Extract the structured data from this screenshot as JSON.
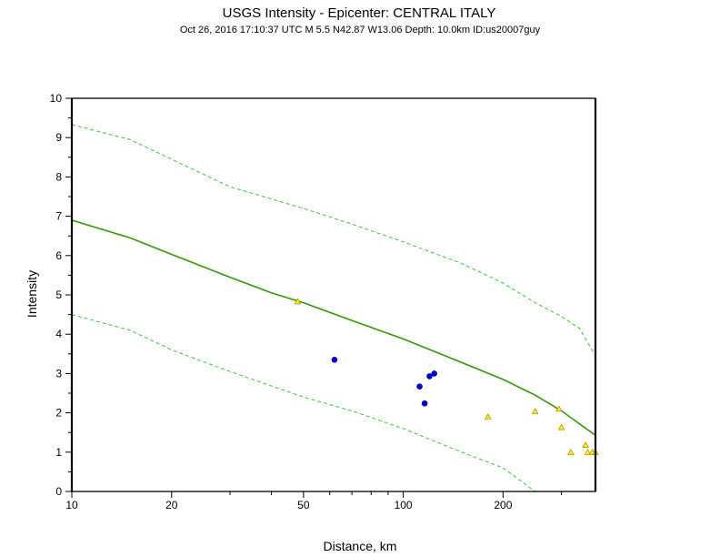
{
  "chart_data": {
    "type": "scatter",
    "title": "USGS Intensity -   Epicenter: CENTRAL ITALY",
    "subtitle": "Oct 26, 2016 17:10:37 UTC   M 5.5   N42.87 W13.06   Depth: 10.0km   ID:us20007guy",
    "xlabel": "Distance, km",
    "ylabel": "Intensity",
    "x_scale": "log",
    "xlim": [
      10,
      380
    ],
    "ylim": [
      0,
      10
    ],
    "x_ticks": [
      10,
      20,
      50,
      100,
      200
    ],
    "x_tick_labels": [
      "10",
      "20",
      "50",
      "100",
      "200"
    ],
    "y_ticks": [
      0,
      1,
      2,
      3,
      4,
      5,
      6,
      7,
      8,
      9,
      10
    ],
    "y_tick_labels": [
      "0",
      "1",
      "2",
      "3",
      "4",
      "5",
      "6",
      "7",
      "8",
      "9",
      "10"
    ],
    "grid": false,
    "colors": {
      "prediction": "#339900",
      "bounds": "#33cc33",
      "dyfi_points": "#0000cc",
      "station_points": "#ffee00",
      "station_outline": "#997700",
      "frame": "#000000"
    },
    "series": [
      {
        "kind": "line",
        "style": "solid",
        "points": [
          [
            10,
            6.9
          ],
          [
            15,
            6.45
          ],
          [
            20,
            6.03
          ],
          [
            30,
            5.45
          ],
          [
            40,
            5.05
          ],
          [
            50,
            4.8
          ],
          [
            70,
            4.35
          ],
          [
            100,
            3.88
          ],
          [
            150,
            3.28
          ],
          [
            200,
            2.85
          ],
          [
            250,
            2.45
          ],
          [
            300,
            2.05
          ],
          [
            340,
            1.72
          ],
          [
            380,
            1.43
          ]
        ]
      },
      {
        "kind": "line",
        "style": "dashed",
        "points": [
          [
            10,
            9.33
          ],
          [
            15,
            8.95
          ],
          [
            20,
            8.45
          ],
          [
            30,
            7.75
          ],
          [
            50,
            7.2
          ],
          [
            70,
            6.8
          ],
          [
            100,
            6.35
          ],
          [
            150,
            5.8
          ],
          [
            200,
            5.3
          ],
          [
            250,
            4.8
          ],
          [
            300,
            4.45
          ],
          [
            340,
            4.15
          ],
          [
            380,
            3.45
          ]
        ]
      },
      {
        "kind": "line",
        "style": "dashed",
        "points": [
          [
            10,
            4.5
          ],
          [
            15,
            4.1
          ],
          [
            20,
            3.6
          ],
          [
            30,
            3.05
          ],
          [
            50,
            2.4
          ],
          [
            70,
            2.05
          ],
          [
            100,
            1.6
          ],
          [
            150,
            1.0
          ],
          [
            200,
            0.6
          ],
          [
            250,
            0.0
          ]
        ]
      },
      {
        "kind": "points",
        "marker": "circle",
        "points": [
          [
            62,
            3.35
          ],
          [
            112,
            2.67
          ],
          [
            116,
            2.24
          ],
          [
            120,
            2.93
          ],
          [
            124,
            3.0
          ]
        ]
      },
      {
        "kind": "points",
        "marker": "triangle",
        "points": [
          [
            48,
            4.83
          ],
          [
            180,
            1.9
          ],
          [
            250,
            2.04
          ],
          [
            295,
            2.1
          ],
          [
            300,
            1.63
          ],
          [
            320,
            1.0
          ],
          [
            355,
            1.18
          ],
          [
            360,
            1.0
          ],
          [
            372,
            1.0
          ],
          [
            380,
            1.0
          ]
        ]
      }
    ]
  }
}
